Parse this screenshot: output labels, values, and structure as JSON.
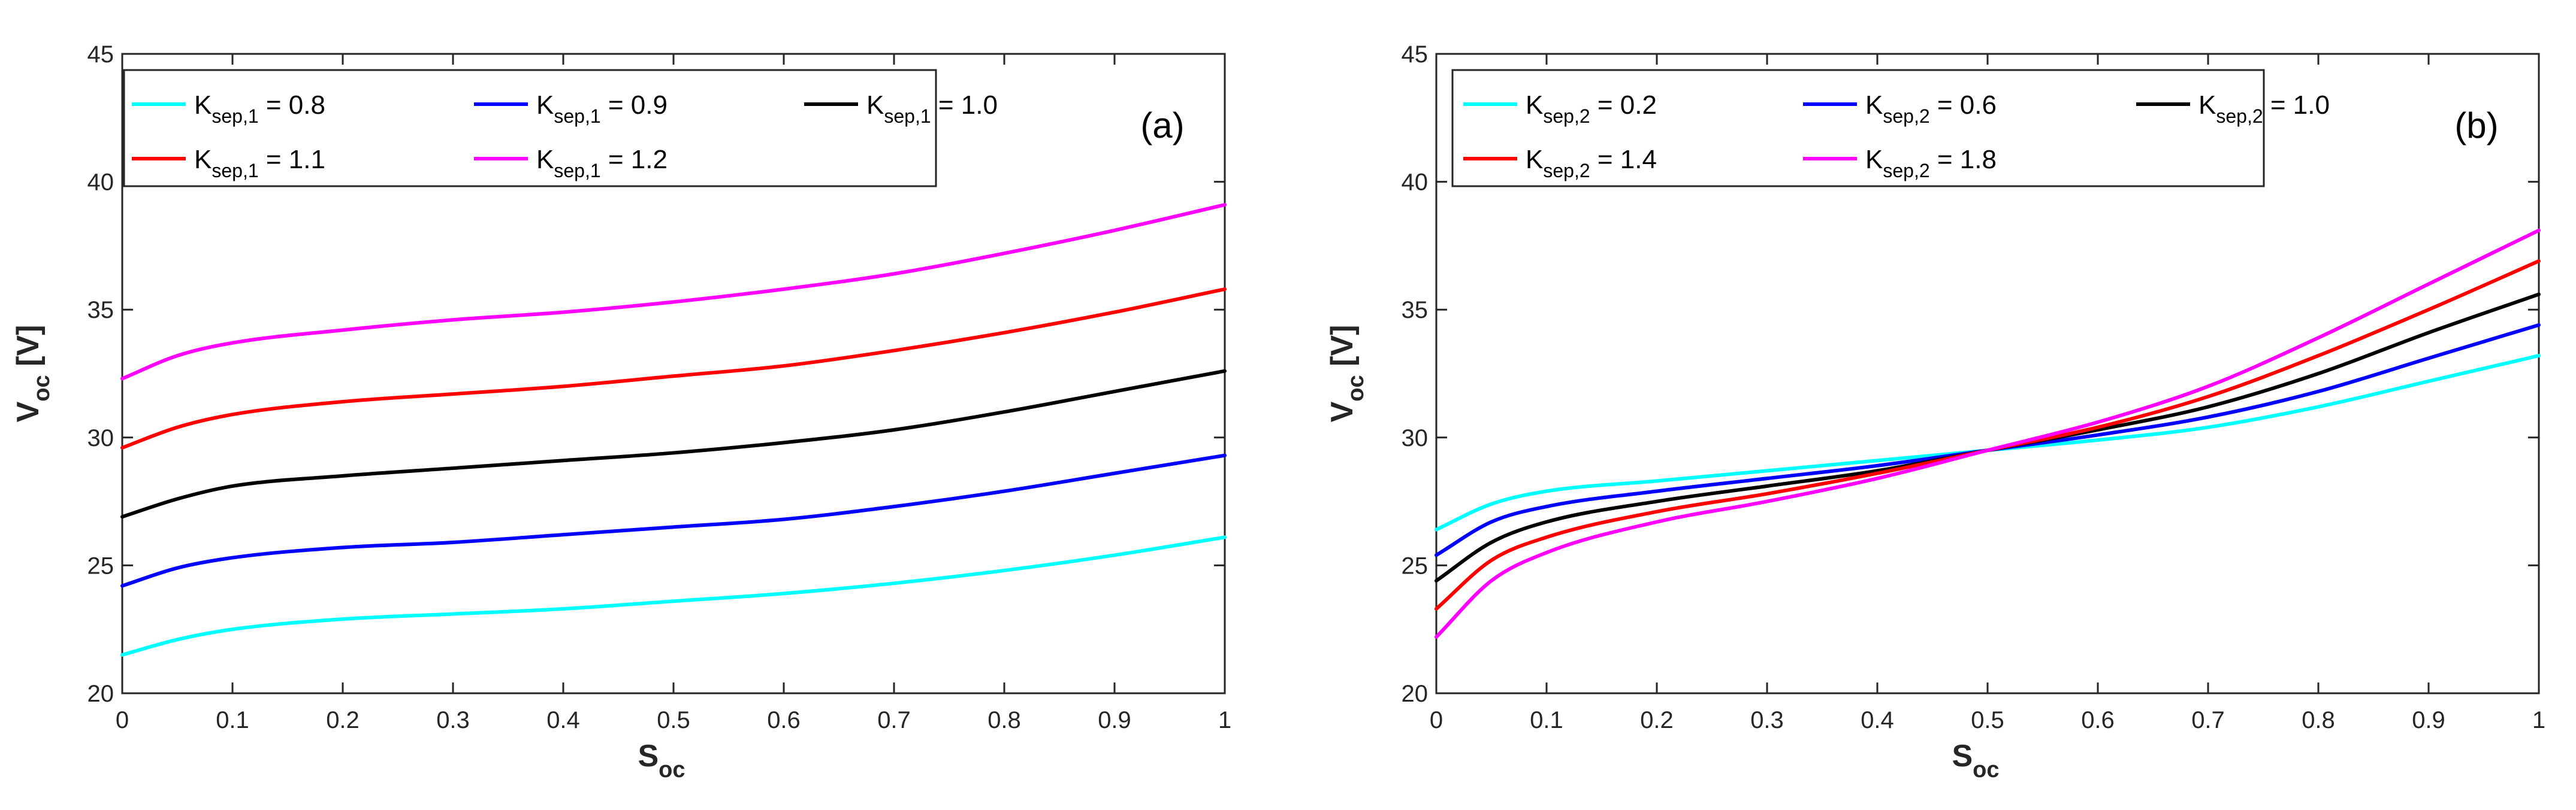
{
  "chart_data": [
    {
      "type": "line",
      "panel_label": "(a)",
      "xlabel": {
        "main": "S",
        "sub": "oc"
      },
      "ylabel": {
        "main": "V",
        "sub": "oc",
        "unit": " [V]"
      },
      "xlim": [
        0,
        1
      ],
      "ylim": [
        20,
        45
      ],
      "xticks": [
        "0",
        "0.1",
        "0.2",
        "0.3",
        "0.4",
        "0.5",
        "0.6",
        "0.7",
        "0.8",
        "0.9",
        "1"
      ],
      "yticks": [
        "20",
        "25",
        "30",
        "35",
        "40",
        "45"
      ],
      "grid": false,
      "legend": {
        "position": "top-left",
        "columns": 3
      },
      "x": [
        0,
        0.05,
        0.1,
        0.2,
        0.3,
        0.4,
        0.5,
        0.6,
        0.7,
        0.8,
        0.9,
        1.0
      ],
      "series": [
        {
          "name": "K",
          "sub": "sep,1",
          "value": " = 0.8",
          "color": "#00FFFF",
          "values": [
            21.5,
            22.1,
            22.5,
            22.9,
            23.1,
            23.3,
            23.6,
            23.9,
            24.3,
            24.8,
            25.4,
            26.1
          ]
        },
        {
          "name": "K",
          "sub": "sep,1",
          "value": " = 0.9",
          "color": "#0000FF",
          "values": [
            24.2,
            24.9,
            25.3,
            25.7,
            25.9,
            26.2,
            26.5,
            26.8,
            27.3,
            27.9,
            28.6,
            29.3
          ]
        },
        {
          "name": "K",
          "sub": "sep,1",
          "value": " = 1.0",
          "color": "#000000",
          "values": [
            26.9,
            27.6,
            28.1,
            28.5,
            28.8,
            29.1,
            29.4,
            29.8,
            30.3,
            31.0,
            31.8,
            32.6
          ]
        },
        {
          "name": "K",
          "sub": "sep,1",
          "value": " = 1.1",
          "color": "#FF0000",
          "values": [
            29.6,
            30.4,
            30.9,
            31.4,
            31.7,
            32.0,
            32.4,
            32.8,
            33.4,
            34.1,
            34.9,
            35.8
          ]
        },
        {
          "name": "K",
          "sub": "sep,1",
          "value": " = 1.2",
          "color": "#FF00FF",
          "values": [
            32.3,
            33.2,
            33.7,
            34.2,
            34.6,
            34.9,
            35.3,
            35.8,
            36.4,
            37.2,
            38.1,
            39.1
          ]
        }
      ]
    },
    {
      "type": "line",
      "panel_label": "(b)",
      "xlabel": {
        "main": "S",
        "sub": "oc"
      },
      "ylabel": {
        "main": "V",
        "sub": "oc",
        "unit": " [V]"
      },
      "xlim": [
        0,
        1
      ],
      "ylim": [
        20,
        45
      ],
      "xticks": [
        "0",
        "0.1",
        "0.2",
        "0.3",
        "0.4",
        "0.5",
        "0.6",
        "0.7",
        "0.8",
        "0.9",
        "1"
      ],
      "yticks": [
        "20",
        "25",
        "30",
        "35",
        "40",
        "45"
      ],
      "grid": false,
      "legend": {
        "position": "top-left",
        "columns": 3
      },
      "x": [
        0,
        0.05,
        0.1,
        0.2,
        0.3,
        0.4,
        0.5,
        0.6,
        0.7,
        0.8,
        0.9,
        1.0
      ],
      "series": [
        {
          "name": "K",
          "sub": "sep,2",
          "value": " = 0.2",
          "color": "#00FFFF",
          "values": [
            26.4,
            27.4,
            27.9,
            28.3,
            28.7,
            29.1,
            29.5,
            29.9,
            30.4,
            31.2,
            32.2,
            33.2
          ]
        },
        {
          "name": "K",
          "sub": "sep,2",
          "value": " = 0.6",
          "color": "#0000FF",
          "values": [
            25.4,
            26.7,
            27.3,
            27.9,
            28.4,
            28.9,
            29.5,
            30.1,
            30.8,
            31.8,
            33.1,
            34.4
          ]
        },
        {
          "name": "K",
          "sub": "sep,2",
          "value": " = 1.0",
          "color": "#000000",
          "values": [
            24.4,
            25.9,
            26.7,
            27.5,
            28.1,
            28.7,
            29.5,
            30.3,
            31.2,
            32.5,
            34.1,
            35.6
          ]
        },
        {
          "name": "K",
          "sub": "sep,2",
          "value": " = 1.4",
          "color": "#FF0000",
          "values": [
            23.3,
            25.2,
            26.1,
            27.1,
            27.8,
            28.6,
            29.5,
            30.4,
            31.6,
            33.2,
            35.0,
            36.9
          ]
        },
        {
          "name": "K",
          "sub": "sep,2",
          "value": " = 1.8",
          "color": "#FF00FF",
          "values": [
            22.2,
            24.4,
            25.5,
            26.7,
            27.5,
            28.4,
            29.5,
            30.6,
            32.0,
            33.9,
            36.0,
            38.1
          ]
        }
      ]
    }
  ]
}
